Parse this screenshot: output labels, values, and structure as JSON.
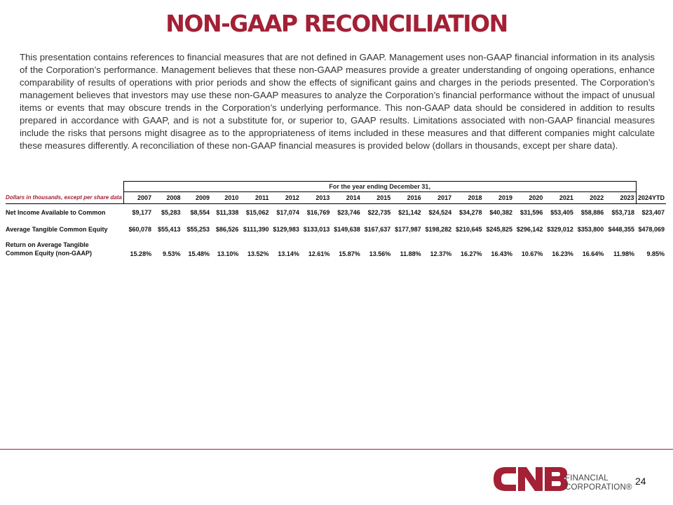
{
  "title": "NON-GAAP RECONCILIATION",
  "intro": "This presentation contains references to financial measures that are not defined in GAAP. Management uses non-GAAP financial information in its analysis of the Corporation’s performance. Management believes that these non-GAAP measures provide a greater understanding of ongoing operations, enhance comparability of results of operations with prior periods and show the effects of significant gains and charges in the periods presented. The Corporation’s management believes that investors may use these non-GAAP measures to analyze the Corporation’s financial performance without the impact of unusual items or events that may obscure trends in the Corporation’s underlying performance. This non-GAAP data should be considered in addition to results prepared in accordance with GAAP, and is not a substitute for, or superior to, GAAP results. Limitations associated with non-GAAP financial measures include the risks that persons might disagree as to the appropriateness of items included in these measures and that different companies might calculate these measures differently. A reconciliation of these non-GAAP financial measures is provided below (dollars in thousands, except per share data).",
  "table": {
    "units_label": "Dollars in thousands, except per share data",
    "period_header": "For the year ending December 31,",
    "years": [
      "2007",
      "2008",
      "2009",
      "2010",
      "2011",
      "2012",
      "2013",
      "2014",
      "2015",
      "2016",
      "2017",
      "2018",
      "2019",
      "2020",
      "2021",
      "2022",
      "2023",
      "2024YTD"
    ],
    "rows": [
      {
        "label": "Net Income Available to Common",
        "values": [
          "$9,177",
          "$5,283",
          "$8,554",
          "$11,338",
          "$15,062",
          "$17,074",
          "$16,769",
          "$23,746",
          "$22,735",
          "$21,142",
          "$24,524",
          "$34,278",
          "$40,382",
          "$31,596",
          "$53,405",
          "$58,886",
          "$53,718",
          "$23,407"
        ]
      },
      {
        "label": "Average Tangible Common Equity",
        "values": [
          "$60,078",
          "$55,413",
          "$55,253",
          "$86,526",
          "$111,390",
          "$129,983",
          "$133,013",
          "$149,638",
          "$167,637",
          "$177,987",
          "$198,282",
          "$210,645",
          "$245,825",
          "$296,142",
          "$329,012",
          "$353,800",
          "$448,355",
          "$478,069"
        ]
      },
      {
        "label_line1": "Return on Average Tangible",
        "label_line2": "Common Equity (non-GAAP)",
        "values": [
          "15.28%",
          "9.53%",
          "15.48%",
          "13.10%",
          "13.52%",
          "13.14%",
          "12.61%",
          "15.87%",
          "13.56%",
          "11.88%",
          "12.37%",
          "16.27%",
          "16.43%",
          "10.67%",
          "16.23%",
          "16.64%",
          "11.98%",
          "9.85%"
        ]
      }
    ]
  },
  "footer": {
    "logo_text_line1": "FINANCIAL",
    "logo_text_line2": "CORPORATION®",
    "page_number": "24"
  },
  "colors": {
    "brand_red": "#a32035",
    "rule": "#a32035"
  }
}
